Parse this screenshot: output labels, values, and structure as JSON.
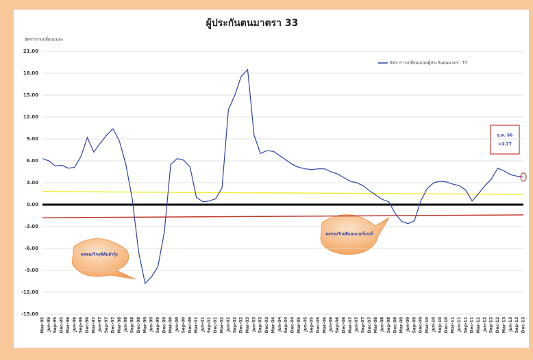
{
  "chart_data": {
    "type": "line",
    "title": "ผู้ประกันตนมาตรา 33",
    "y_label": "อัตราการเปลี่ยนแปลง",
    "categories": [
      "Mar-95",
      "Jun-95",
      "Sep-95",
      "Dec-95",
      "Mar-96",
      "Jun-96",
      "Sep-96",
      "Dec-96",
      "Mar-97",
      "Jun-97",
      "Sep-97",
      "Dec-97",
      "Mar-98",
      "Jun-98",
      "Sep-98",
      "Dec-98",
      "Mar-99",
      "Jun-99",
      "Sep-99",
      "Dec-99",
      "Mar-00",
      "Jun-00",
      "Sep-00",
      "Dec-00",
      "Mar-01",
      "Jun-01",
      "Sep-01",
      "Dec-01",
      "Mar-02",
      "Jun-02",
      "Sep-02",
      "Dec-02",
      "Mar-03",
      "Jun-03",
      "Sep-03",
      "Dec-03",
      "Mar-04",
      "Jun-04",
      "Sep-04",
      "Dec-04",
      "Mar-05",
      "Jun-05",
      "Sep-05",
      "Dec-05",
      "Mar-06",
      "Jun-06",
      "Sep-06",
      "Dec-06",
      "Mar-07",
      "Jun-07",
      "Sep-07",
      "Dec-07",
      "Mar-08",
      "Jun-08",
      "Sep-08",
      "Dec-08",
      "Mar-09",
      "Jun-09",
      "Sep-09",
      "Dec-09",
      "Mar-10",
      "Jun-10",
      "Sep-10",
      "Dec-10",
      "Mar-11",
      "Jun-11",
      "Sep-11",
      "Dec-11",
      "Mar-12",
      "Jun-12",
      "Sep-12",
      "Dec-12",
      "Mar-13",
      "Jun-13",
      "Sep-13",
      "Dec-13"
    ],
    "series": [
      {
        "name": "อัตราการเปลี่ยนแปลงผู้ประกันตนมาตรา 33",
        "color": "#2e3fa8",
        "values": [
          6.3,
          6.0,
          5.3,
          5.4,
          5.0,
          5.1,
          6.6,
          9.2,
          7.2,
          8.4,
          9.5,
          10.4,
          8.7,
          5.5,
          0.8,
          -6.5,
          -10.8,
          -9.9,
          -8.5,
          -3.8,
          5.5,
          6.3,
          6.1,
          5.2,
          1.0,
          0.4,
          0.5,
          0.8,
          2.3,
          13,
          15,
          17.6,
          18.5,
          9.5,
          7.0,
          7.4,
          7.3,
          6.7,
          6.1,
          5.5,
          5.1,
          4.9,
          4.8,
          4.9,
          4.9,
          4.5,
          4.2,
          3.7,
          3.2,
          3.0,
          2.6,
          1.9,
          1.3,
          0.7,
          0.4,
          -1.2,
          -2.3,
          -2.6,
          -2.2,
          0.5,
          2.2,
          3.0,
          3.2,
          3.1,
          2.8,
          2.6,
          2.0,
          0.5,
          1.5,
          2.6,
          3.5,
          5.0,
          4.6,
          4.1,
          3.9,
          3.77
        ]
      }
    ],
    "reference_lines": [
      {
        "color": "#000000",
        "values": [
          0,
          0
        ]
      },
      {
        "color": "#f2ee3a",
        "values": [
          1.8,
          1.4
        ]
      },
      {
        "color": "#c0392b",
        "values": [
          -1.8,
          -1.4
        ]
      }
    ],
    "ylim": [
      -15,
      21
    ],
    "yticks": [
      {
        "value": -15,
        "label": "-15.00"
      },
      {
        "value": -12,
        "label": "-12.00"
      },
      {
        "value": -9,
        "label": "-9.00"
      },
      {
        "value": -6,
        "label": "-6.00"
      },
      {
        "value": -3,
        "label": "-3.00"
      },
      {
        "value": 0,
        "label": "0.00"
      },
      {
        "value": 3,
        "label": "3.00"
      },
      {
        "value": 6,
        "label": "6.00"
      },
      {
        "value": 9,
        "label": "9.00"
      },
      {
        "value": 12,
        "label": "12.00"
      },
      {
        "value": 15,
        "label": "15.00"
      },
      {
        "value": 18,
        "label": "18.00"
      },
      {
        "value": 21,
        "label": "21.00"
      }
    ],
    "grid": true,
    "legend": "top-right",
    "annotations": [
      {
        "text": "ผลของวิกฤติต้มยำกุ้ง"
      },
      {
        "text": "ผลของวิกฤติแฮมเบอร์เกอร์"
      },
      {
        "text": "ธ.ค. 56",
        "value_label": "=3.77"
      }
    ]
  }
}
